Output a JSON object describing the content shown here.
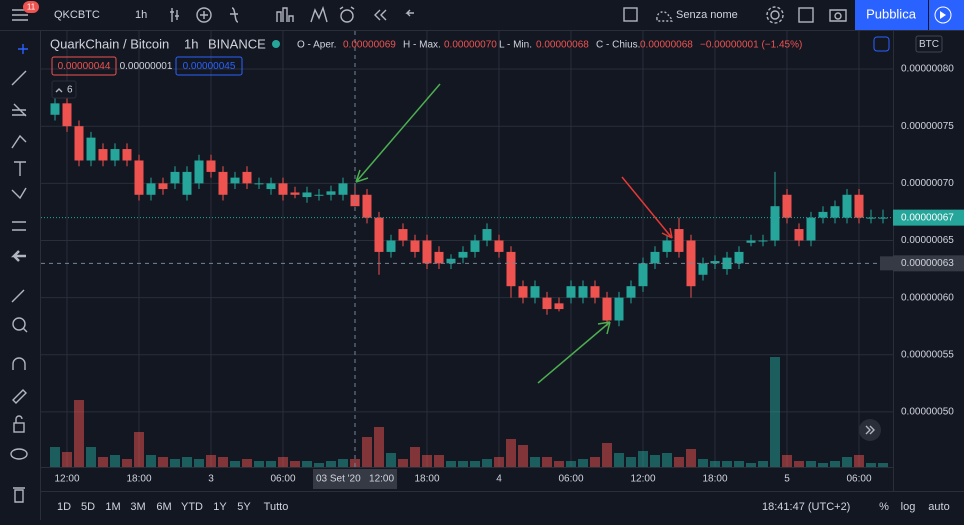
{
  "toolbar": {
    "badge": "11",
    "symbol": "QKCBTC",
    "interval": "1h",
    "layout_name": "Senza nome",
    "publish": "Pubblica"
  },
  "legend": {
    "pair": "QuarkChain / Bitcoin",
    "interval": "1h",
    "exchange": "BINANCE",
    "open_label": "O - Aper.",
    "open": "0.00000069",
    "high_label": "H - Max.",
    "high": "0.00000070",
    "low_label": "L - Min.",
    "low": "0.00000068",
    "close_label": "C - Chius.",
    "close": "0.00000068",
    "change": "−0.00000001 (−1.45%)",
    "sell": "0.00000044",
    "spread": "0.00000001",
    "buy": "0.00000045",
    "indicators": "6",
    "currency": "BTC"
  },
  "bottom_bar": {
    "ranges": [
      "1D",
      "5D",
      "1M",
      "3M",
      "6M",
      "YTD",
      "1Y",
      "5Y",
      "Tutto"
    ],
    "clock": "18:41:47 (UTC+2)",
    "percent": "%",
    "log": "log",
    "auto": "auto"
  },
  "chart_data": {
    "type": "candlestick",
    "up_color": "#26a69a",
    "down_color": "#ef5350",
    "categories": [
      null,
      "12:00",
      null,
      null,
      null,
      null,
      null,
      "18:00",
      null,
      null,
      null,
      null,
      null,
      "3",
      null,
      null,
      null,
      null,
      null,
      "06:00",
      null,
      null,
      null,
      null,
      null,
      null,
      null,
      null,
      null,
      null,
      null,
      "18:00",
      null,
      null,
      null,
      null,
      null,
      "4",
      null,
      null,
      null,
      null,
      null,
      "06:00",
      null,
      null,
      null,
      null,
      null,
      "12:00",
      null,
      null,
      null,
      null,
      null,
      "18:00",
      null,
      null,
      null,
      null,
      null,
      "5",
      null,
      null,
      null,
      null,
      null,
      "06:00",
      null,
      null
    ],
    "open": [
      7.6e-07,
      7.7e-07,
      7.5e-07,
      7.2e-07,
      7.3e-07,
      7.2e-07,
      7.3e-07,
      7.2e-07,
      6.9e-07,
      7e-07,
      7e-07,
      6.9e-07,
      7e-07,
      7.2e-07,
      7.1e-07,
      7e-07,
      7.1e-07,
      7e-07,
      6.95e-07,
      7e-07,
      6.92e-07,
      6.88e-07,
      6.9e-07,
      6.9e-07,
      6.9e-07,
      6.9e-07,
      6.9e-07,
      6.7e-07,
      6.4e-07,
      6.6e-07,
      6.5e-07,
      6.5e-07,
      6.4e-07,
      6.3e-07,
      6.35e-07,
      6.4e-07,
      6.5e-07,
      6.5e-07,
      6.4e-07,
      6.1e-07,
      6e-07,
      6e-07,
      5.95e-07,
      6e-07,
      6e-07,
      6.1e-07,
      6e-07,
      5.8e-07,
      6e-07,
      6.1e-07,
      6.3e-07,
      6.4e-07,
      6.6e-07,
      6.5e-07,
      6.2e-07,
      6.3e-07,
      6.25e-07,
      6.3e-07,
      6.48e-07,
      6.5e-07,
      6.5e-07,
      6.9e-07,
      6.6e-07,
      6.5e-07,
      6.7e-07,
      6.7e-07,
      6.7e-07,
      6.9e-07,
      6.7e-07,
      6.7e-07
    ],
    "high": [
      7.75e-07,
      7.8e-07,
      7.55e-07,
      7.45e-07,
      7.35e-07,
      7.35e-07,
      7.35e-07,
      7.25e-07,
      7.05e-07,
      7.05e-07,
      7.15e-07,
      7.15e-07,
      7.25e-07,
      7.25e-07,
      7.15e-07,
      7.1e-07,
      7.15e-07,
      7.05e-07,
      7.05e-07,
      7.05e-07,
      6.97e-07,
      6.97e-07,
      6.95e-07,
      6.98e-07,
      7.05e-07,
      7e-07,
      6.95e-07,
      6.75e-07,
      6.55e-07,
      6.65e-07,
      6.55e-07,
      6.55e-07,
      6.45e-07,
      6.38e-07,
      6.45e-07,
      6.55e-07,
      6.65e-07,
      6.55e-07,
      6.45e-07,
      6.15e-07,
      6.15e-07,
      6.05e-07,
      6e-07,
      6.15e-07,
      6.15e-07,
      6.15e-07,
      6.05e-07,
      6.05e-07,
      6.15e-07,
      6.35e-07,
      6.45e-07,
      6.55e-07,
      6.7e-07,
      6.55e-07,
      6.35e-07,
      6.37e-07,
      6.4e-07,
      6.45e-07,
      6.55e-07,
      6.55e-07,
      7.1e-07,
      6.95e-07,
      6.65e-07,
      6.75e-07,
      6.8e-07,
      6.85e-07,
      6.95e-07,
      6.95e-07,
      6.77e-07,
      6.77e-07
    ],
    "low": [
      7.55e-07,
      7.45e-07,
      7.15e-07,
      7.15e-07,
      7.15e-07,
      7.15e-07,
      7.15e-07,
      6.85e-07,
      6.85e-07,
      6.9e-07,
      6.95e-07,
      6.85e-07,
      6.95e-07,
      7.05e-07,
      6.85e-07,
      6.95e-07,
      6.95e-07,
      6.95e-07,
      6.9e-07,
      6.85e-07,
      6.87e-07,
      6.83e-07,
      6.85e-07,
      6.85e-07,
      6.85e-07,
      6.8e-07,
      6.65e-07,
      6.2e-07,
      6.35e-07,
      6.45e-07,
      6.35e-07,
      6.25e-07,
      6.25e-07,
      6.25e-07,
      6.3e-07,
      6.35e-07,
      6.45e-07,
      6.35e-07,
      6e-07,
      5.95e-07,
      5.95e-07,
      5.85e-07,
      5.88e-07,
      5.95e-07,
      5.95e-07,
      5.95e-07,
      5.75e-07,
      5.75e-07,
      5.95e-07,
      6.05e-07,
      6.25e-07,
      6.35e-07,
      6.35e-07,
      6e-07,
      6.15e-07,
      6.25e-07,
      6.2e-07,
      6.25e-07,
      6.45e-07,
      6.45e-07,
      6.45e-07,
      6.65e-07,
      6.45e-07,
      6.45e-07,
      6.65e-07,
      6.65e-07,
      6.65e-07,
      6.65e-07,
      6.65e-07,
      6.65e-07
    ],
    "close": [
      7.7e-07,
      7.5e-07,
      7.2e-07,
      7.4e-07,
      7.2e-07,
      7.3e-07,
      7.2e-07,
      6.9e-07,
      7e-07,
      6.95e-07,
      7.1e-07,
      7.1e-07,
      7.2e-07,
      7.1e-07,
      6.9e-07,
      7.05e-07,
      7e-07,
      7e-07,
      7e-07,
      6.9e-07,
      6.9e-07,
      6.92e-07,
      6.9e-07,
      6.93e-07,
      7e-07,
      6.8e-07,
      6.7e-07,
      6.4e-07,
      6.5e-07,
      6.5e-07,
      6.4e-07,
      6.3e-07,
      6.3e-07,
      6.34e-07,
      6.4e-07,
      6.5e-07,
      6.6e-07,
      6.4e-07,
      6.1e-07,
      6e-07,
      6.1e-07,
      5.9e-07,
      5.9e-07,
      6.1e-07,
      6.1e-07,
      6e-07,
      5.8e-07,
      6e-07,
      6.1e-07,
      6.3e-07,
      6.4e-07,
      6.5e-07,
      6.4e-07,
      6.1e-07,
      6.3e-07,
      6.32e-07,
      6.35e-07,
      6.4e-07,
      6.5e-07,
      6.5e-07,
      6.8e-07,
      6.7e-07,
      6.5e-07,
      6.7e-07,
      6.75e-07,
      6.8e-07,
      6.9e-07,
      6.7e-07,
      6.7e-07,
      6.7e-07
    ],
    "volume": [
      20,
      15,
      67,
      20,
      10,
      12,
      8,
      35,
      12,
      10,
      8,
      10,
      8,
      12,
      10,
      6,
      8,
      6,
      6,
      10,
      6,
      6,
      4,
      6,
      8,
      8,
      30,
      40,
      14,
      8,
      20,
      12,
      12,
      6,
      6,
      6,
      8,
      10,
      28,
      22,
      10,
      10,
      6,
      6,
      8,
      10,
      24,
      14,
      10,
      16,
      12,
      14,
      10,
      18,
      8,
      6,
      6,
      6,
      4,
      6,
      110,
      12,
      6,
      6,
      4,
      6,
      10,
      12,
      4,
      4
    ],
    "ylim": [
      4.518e-07,
      8.333e-07
    ],
    "yticks": [
      {
        "value": 5e-07,
        "label": "0.00000050"
      },
      {
        "value": 5.5e-07,
        "label": "0.00000055"
      },
      {
        "value": 6e-07,
        "label": "0.00000060"
      },
      {
        "value": 6.5e-07,
        "label": "0.00000065"
      },
      {
        "value": 7e-07,
        "label": "0.00000070"
      },
      {
        "value": 7.5e-07,
        "label": "0.00000075"
      },
      {
        "value": 8e-07,
        "label": "0.00000080"
      }
    ],
    "last_price": {
      "value": 6.7e-07,
      "label": "0.00000067"
    },
    "crosshair_price": {
      "value": 6.3e-07,
      "label": "0.00000063"
    },
    "crosshair_time": "03 Set '20   12:00",
    "crosshair_index": 25,
    "grid": true
  }
}
